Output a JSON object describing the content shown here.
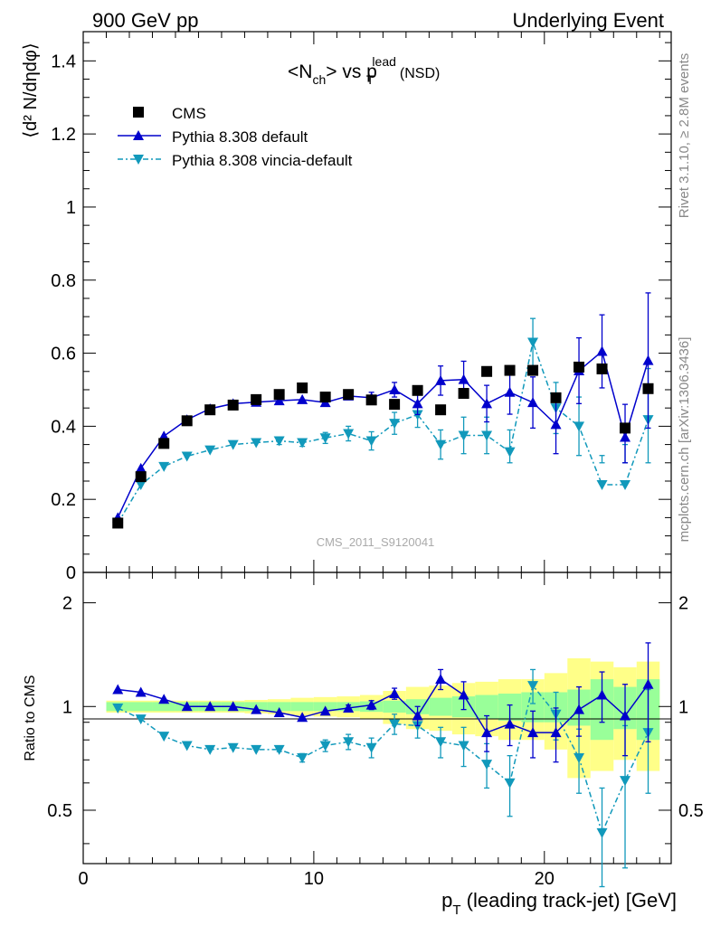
{
  "header": {
    "left": "900 GeV pp",
    "right": "Underlying Event"
  },
  "title": {
    "main": "<N",
    "main_sub": "ch",
    "mid": "> vs p",
    "sub": "T",
    "sup": "lead",
    "suffix": "(NSD)"
  },
  "side_labels": {
    "rivet": "Rivet 3.1.10, ≥ 2.8M events",
    "mcplots": "mcplots.cern.ch [arXiv:1306.3436]"
  },
  "watermark": "CMS_2011_S9120041",
  "colors": {
    "cms": "#000000",
    "default": "#0000cc",
    "vincia": "#1199bb",
    "band_inner": "#99ff99",
    "band_outer": "#ffff88"
  },
  "chart_data": [
    {
      "type": "scatter",
      "panel": "main",
      "ylabel": "⟨d² N/dηdφ⟩",
      "xlim": [
        0,
        25.5
      ],
      "ylim": [
        0,
        1.48
      ],
      "yticks": [
        0,
        0.2,
        0.4,
        0.6,
        0.8,
        1,
        1.2,
        1.4
      ],
      "ytick_labels": [
        "0",
        "0.2",
        "0.4",
        "0.6",
        "0.8",
        "1",
        "1.2",
        "1.4"
      ],
      "legend_position": "top-left",
      "x": [
        1.5,
        2.5,
        3.5,
        4.5,
        5.5,
        6.5,
        7.5,
        8.5,
        9.5,
        10.5,
        11.5,
        12.5,
        13.5,
        14.5,
        15.5,
        16.5,
        17.5,
        18.5,
        19.5,
        20.5,
        21.5,
        22.5,
        23.5,
        24.5
      ],
      "series": [
        {
          "name": "CMS",
          "marker": "square",
          "values": [
            0.135,
            0.262,
            0.353,
            0.415,
            0.445,
            0.458,
            0.473,
            0.487,
            0.505,
            0.48,
            0.487,
            0.472,
            0.46,
            0.498,
            0.445,
            0.49,
            0.55,
            0.553,
            0.553,
            0.478,
            0.562,
            0.557,
            0.395,
            0.503
          ]
        },
        {
          "name": "Pythia 8.308 default",
          "marker": "triangle-up",
          "values": [
            0.15,
            0.285,
            0.373,
            0.418,
            0.448,
            0.462,
            0.466,
            0.47,
            0.473,
            0.465,
            0.483,
            0.478,
            0.5,
            0.462,
            0.525,
            0.528,
            0.462,
            0.493,
            0.465,
            0.405,
            0.552,
            0.605,
            0.37,
            0.58
          ],
          "errors": [
            0,
            0,
            0,
            0,
            0,
            0,
            0,
            0,
            0,
            0,
            0.01,
            0.015,
            0.02,
            0.03,
            0.04,
            0.05,
            0.05,
            0.06,
            0.07,
            0.08,
            0.09,
            0.1,
            0.09,
            0.185
          ]
        },
        {
          "name": "Pythia 8.308 vincia-default",
          "marker": "triangle-down",
          "values": [
            0.135,
            0.24,
            0.29,
            0.318,
            0.335,
            0.35,
            0.355,
            0.36,
            0.355,
            0.368,
            0.38,
            0.36,
            0.408,
            0.432,
            0.35,
            0.375,
            0.375,
            0.33,
            0.63,
            0.45,
            0.4,
            0.24,
            0.24,
            0.418
          ],
          "errors": [
            0,
            0,
            0,
            0,
            0,
            0,
            0,
            0.01,
            0.01,
            0.015,
            0.02,
            0.025,
            0.03,
            0.035,
            0.04,
            0.05,
            0.05,
            0.06,
            0.065,
            0.07,
            0.08,
            0.08,
            0.11,
            0.14
          ]
        }
      ]
    },
    {
      "type": "line",
      "panel": "ratio",
      "ylabel": "Ratio to CMS",
      "xlabel_main": "p",
      "xlabel_sub": "T",
      "xlabel_rest": " (leading track-jet) [GeV]",
      "xlim": [
        0,
        25.5
      ],
      "ylim": [
        0.35,
        2.45
      ],
      "xticks": [
        0,
        10,
        20
      ],
      "xtick_labels": [
        "0",
        "10",
        "20"
      ],
      "yticks": [
        0.5,
        1,
        2
      ],
      "ytick_labels": [
        "0.5",
        "1",
        "2"
      ],
      "x": [
        1.5,
        2.5,
        3.5,
        4.5,
        5.5,
        6.5,
        7.5,
        8.5,
        9.5,
        10.5,
        11.5,
        12.5,
        13.5,
        14.5,
        15.5,
        16.5,
        17.5,
        18.5,
        19.5,
        20.5,
        21.5,
        22.5,
        23.5,
        24.5
      ],
      "band_inner": [
        0.03,
        0.03,
        0.03,
        0.03,
        0.03,
        0.03,
        0.03,
        0.03,
        0.03,
        0.03,
        0.03,
        0.035,
        0.04,
        0.05,
        0.06,
        0.07,
        0.08,
        0.09,
        0.1,
        0.1,
        0.12,
        0.2,
        0.14,
        0.2
      ],
      "band_outer": [
        0.04,
        0.04,
        0.04,
        0.04,
        0.04,
        0.04,
        0.045,
        0.05,
        0.06,
        0.065,
        0.07,
        0.08,
        0.11,
        0.14,
        0.15,
        0.17,
        0.18,
        0.2,
        0.2,
        0.25,
        0.38,
        0.35,
        0.3,
        0.35
      ],
      "series": [
        {
          "name": "Pythia 8.308 default",
          "values": [
            1.12,
            1.1,
            1.05,
            1.0,
            1.0,
            1.0,
            0.98,
            0.96,
            0.93,
            0.97,
            0.99,
            1.01,
            1.09,
            0.94,
            1.2,
            1.08,
            0.84,
            0.89,
            0.84,
            0.84,
            0.98,
            1.08,
            0.94,
            1.16
          ],
          "errors": [
            0,
            0,
            0,
            0,
            0,
            0,
            0,
            0,
            0,
            0,
            0.02,
            0.03,
            0.04,
            0.06,
            0.08,
            0.1,
            0.1,
            0.12,
            0.13,
            0.15,
            0.16,
            0.18,
            0.22,
            0.37
          ]
        },
        {
          "name": "Pythia 8.308 vincia-default",
          "values": [
            0.99,
            0.92,
            0.82,
            0.77,
            0.75,
            0.76,
            0.75,
            0.75,
            0.71,
            0.77,
            0.79,
            0.76,
            0.89,
            0.88,
            0.79,
            0.77,
            0.68,
            0.6,
            1.15,
            0.95,
            0.71,
            0.43,
            0.61,
            0.84
          ],
          "errors": [
            0,
            0,
            0,
            0,
            0,
            0,
            0,
            0.01,
            0.02,
            0.03,
            0.04,
            0.05,
            0.06,
            0.07,
            0.08,
            0.1,
            0.1,
            0.12,
            0.13,
            0.15,
            0.15,
            0.15,
            0.27,
            0.28
          ]
        }
      ]
    }
  ]
}
